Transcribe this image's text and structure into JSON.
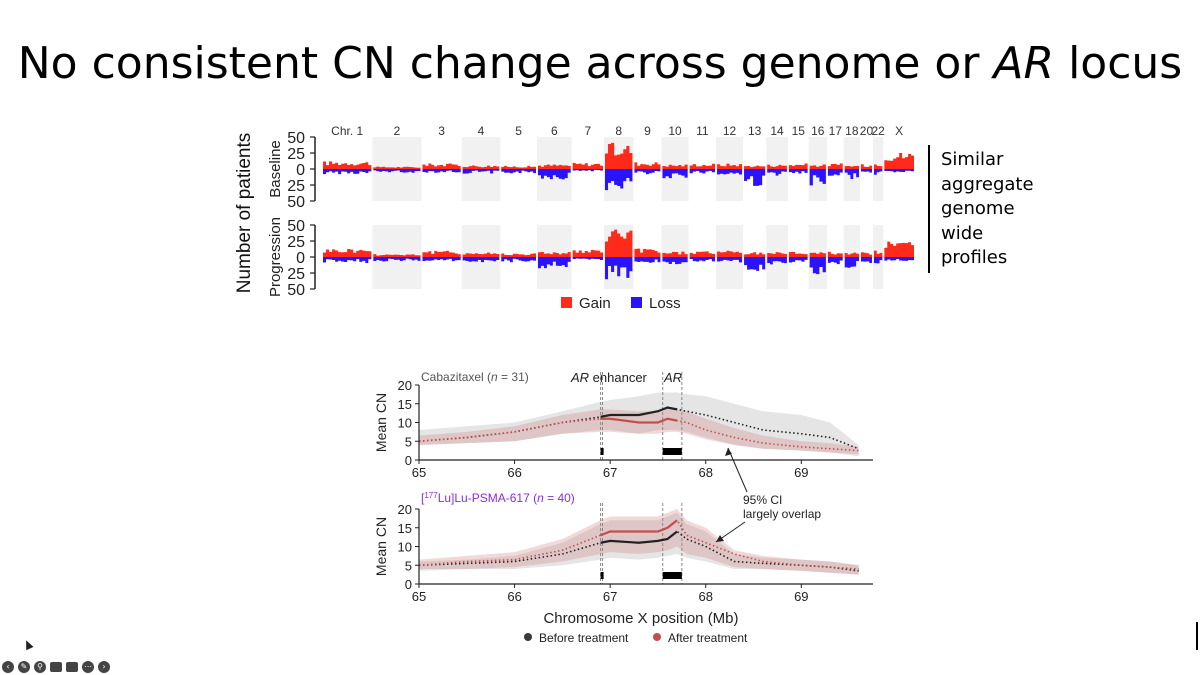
{
  "slide": {
    "title_prefix": "No consistent CN change across genome or ",
    "title_italic": "AR",
    "title_suffix": " locus",
    "side_note_lines": [
      "Similar",
      "aggregate",
      "genome",
      "wide",
      "profiles"
    ]
  },
  "chart_data": [
    {
      "type": "bar",
      "title": "",
      "ylabel": "Number of patients",
      "xlabel": "",
      "categories": [
        "Chr. 1",
        "2",
        "3",
        "4",
        "5",
        "6",
        "7",
        "8",
        "9",
        "10",
        "11",
        "12",
        "13",
        "14",
        "15",
        "16",
        "17",
        "18",
        "20",
        "22",
        "X"
      ],
      "panels": [
        {
          "name": "Baseline",
          "ticks": [
            "50",
            "25",
            "0",
            "25",
            "50"
          ],
          "ylim": [
            -50,
            50
          ],
          "series": [
            {
              "name": "Gain",
              "color": "#ff2a1a",
              "values": [
                10,
                3,
                7,
                5,
                4,
                6,
                8,
                33,
                9,
                6,
                7,
                7,
                5,
                6,
                7,
                6,
                7,
                5,
                6,
                8,
                22
              ]
            },
            {
              "name": "Loss",
              "color": "#2a14ff",
              "values": [
                -7,
                -5,
                -5,
                -6,
                -6,
                -14,
                -3,
                -28,
                -7,
                -12,
                -6,
                -9,
                -24,
                -9,
                -8,
                -22,
                -9,
                -14,
                -7,
                -8,
                -5
              ]
            }
          ]
        },
        {
          "name": "Progression",
          "ticks": [
            "50",
            "25",
            "0",
            "25",
            "50"
          ],
          "ylim": [
            -50,
            50
          ],
          "series": [
            {
              "name": "Gain",
              "color": "#ff2a1a",
              "values": [
                11,
                4,
                8,
                6,
                5,
                7,
                9,
                38,
                11,
                7,
                8,
                8,
                6,
                7,
                7,
                7,
                7,
                6,
                6,
                9,
                20
              ]
            },
            {
              "name": "Loss",
              "color": "#2a14ff",
              "values": [
                -8,
                -6,
                -6,
                -7,
                -7,
                -16,
                -4,
                -30,
                -8,
                -13,
                -7,
                -10,
                -28,
                -10,
                -9,
                -25,
                -10,
                -15,
                -8,
                -9,
                -6
              ]
            }
          ]
        }
      ],
      "legend": {
        "items": [
          {
            "label": "Gain",
            "color": "#ff2a1a"
          },
          {
            "label": "Loss",
            "color": "#2a14ff"
          }
        ],
        "placement": "bottom"
      }
    },
    {
      "type": "line",
      "xlabel": "Chromosome X position (Mb)",
      "ylabel": "Mean CN",
      "xlim": [
        65,
        69.75
      ],
      "ylim": [
        0,
        20
      ],
      "xticks": [
        "65",
        "66",
        "67",
        "68",
        "69"
      ],
      "yticks": [
        "0",
        "5",
        "10",
        "15",
        "20"
      ],
      "annotations": {
        "enhancer_label_italic": "AR",
        "enhancer_label_rest": " enhancer",
        "ar_label": "AR",
        "ci_note_line1": "95% CI",
        "ci_note_line2": "largely overlap",
        "enhancer_region_mb": [
          66.9,
          66.92
        ],
        "ar_region_mb": [
          67.55,
          67.75
        ]
      },
      "legend": {
        "items": [
          {
            "label": "Before treatment",
            "color": "#3a3a3a"
          },
          {
            "label": "After treatment",
            "color": "#c0504d"
          }
        ],
        "placement": "bottom"
      },
      "panels": [
        {
          "title_prefix": "Cabazitaxel (",
          "title_n": "n",
          "title_suffix": " = 31)",
          "title_color": "#555555",
          "x": [
            65.0,
            65.5,
            66.0,
            66.5,
            66.9,
            67.0,
            67.3,
            67.5,
            67.6,
            67.7,
            67.8,
            68.0,
            68.3,
            68.6,
            69.0,
            69.3,
            69.6
          ],
          "series": [
            {
              "name": "Before treatment",
              "color": "#222222",
              "values": [
                5,
                6,
                7.5,
                10,
                11.5,
                12,
                12,
                13,
                14,
                13.5,
                13,
                12,
                10,
                8,
                7,
                6,
                3
              ]
            },
            {
              "name": "After treatment",
              "color": "#c0504d",
              "values": [
                5,
                6,
                7.5,
                10,
                11,
                11,
                10,
                10,
                11,
                10.5,
                10,
                8,
                6,
                4.5,
                3.5,
                3,
                2.5
              ]
            }
          ],
          "ci_upper_before": [
            8,
            9,
            10,
            13,
            15.5,
            16,
            17,
            18,
            18,
            18,
            17.5,
            17,
            15,
            13,
            12,
            10,
            4
          ],
          "ci_lower_before": [
            4,
            4.5,
            5,
            7,
            8,
            8,
            7,
            8,
            8,
            8,
            7.5,
            6,
            4,
            3,
            2.5,
            2,
            1
          ],
          "ci_upper_after": [
            6.5,
            7.5,
            9,
            12,
            13.5,
            13.5,
            13,
            13,
            14,
            13.5,
            13,
            11,
            8.5,
            6.5,
            5,
            4.5,
            3.5
          ],
          "ci_lower_after": [
            4,
            4.5,
            5,
            7,
            7.5,
            7.5,
            7,
            7,
            7.5,
            7.5,
            7,
            5.5,
            4,
            3,
            2.5,
            2,
            1.5
          ]
        },
        {
          "title_prefix": "[",
          "title_sup": "177",
          "title_mid": "Lu]Lu-PSMA-617 (",
          "title_n": "n",
          "title_suffix": " = 40)",
          "title_color": "#8a2be2",
          "x": [
            65.0,
            65.5,
            66.0,
            66.5,
            66.9,
            67.0,
            67.3,
            67.5,
            67.6,
            67.7,
            67.8,
            68.0,
            68.3,
            68.6,
            69.0,
            69.3,
            69.6
          ],
          "series": [
            {
              "name": "Before treatment",
              "color": "#222222",
              "values": [
                5,
                5.5,
                6,
                8,
                11,
                11.5,
                11,
                11.5,
                12,
                14,
                12,
                10,
                6,
                5.5,
                5,
                4.5,
                3.5
              ]
            },
            {
              "name": "After treatment",
              "color": "#c0504d",
              "values": [
                5,
                6,
                6.5,
                9,
                13,
                14,
                14,
                14,
                15,
                17,
                13,
                11,
                8,
                6,
                5,
                4.5,
                4
              ]
            }
          ],
          "ci_upper_before": [
            6,
            6.5,
            7.5,
            11,
            16,
            17,
            17,
            17,
            18,
            19,
            16,
            14,
            8,
            7,
            6.5,
            6,
            5
          ],
          "ci_lower_before": [
            3.5,
            4,
            4,
            5,
            6.5,
            7,
            6.5,
            7,
            7.5,
            8,
            7,
            6,
            4,
            4,
            3.5,
            3,
            2.5
          ],
          "ci_upper_after": [
            6.5,
            7.5,
            8.5,
            12,
            17,
            18,
            18,
            18,
            19,
            20,
            17,
            15,
            9,
            7.5,
            6.5,
            6,
            5
          ],
          "ci_lower_after": [
            4,
            4,
            4.5,
            6,
            8,
            8.5,
            8,
            8.5,
            9,
            10,
            8,
            7,
            4.5,
            4,
            3.5,
            3,
            2.5
          ]
        }
      ]
    }
  ]
}
